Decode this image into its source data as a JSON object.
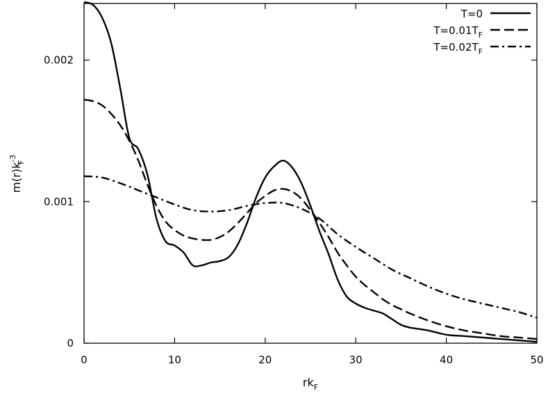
{
  "chart_data": {
    "type": "line",
    "xlabel": {
      "base": "rk",
      "sub": "F"
    },
    "ylabel": {
      "base": "m(r)k",
      "sub": "F",
      "sup": "-3"
    },
    "xlim": [
      0,
      50
    ],
    "ylim": [
      0,
      0.0024
    ],
    "xticks": [
      {
        "value": 0,
        "label": "0"
      },
      {
        "value": 10,
        "label": "10"
      },
      {
        "value": 20,
        "label": "20"
      },
      {
        "value": 30,
        "label": "30"
      },
      {
        "value": 40,
        "label": "40"
      },
      {
        "value": 50,
        "label": "50"
      }
    ],
    "yticks": [
      {
        "value": 0,
        "label": "0"
      },
      {
        "value": 0.001,
        "label": "0.001"
      },
      {
        "value": 0.002,
        "label": "0.002"
      }
    ],
    "grid": false,
    "legend_position": "top-right",
    "series": [
      {
        "name": "T=0",
        "name_base": "T=0",
        "name_sub": "",
        "dash": "solid",
        "points": [
          [
            0,
            0.00241
          ],
          [
            1,
            0.00239
          ],
          [
            2,
            0.0023
          ],
          [
            3,
            0.00212
          ],
          [
            4,
            0.0018
          ],
          [
            5,
            0.00145
          ],
          [
            6,
            0.00137
          ],
          [
            7,
            0.00119
          ],
          [
            8,
            0.00088
          ],
          [
            9,
            0.00072
          ],
          [
            10,
            0.00069
          ],
          [
            11,
            0.00064
          ],
          [
            12,
            0.00055
          ],
          [
            13,
            0.00055
          ],
          [
            14,
            0.00057
          ],
          [
            15,
            0.00058
          ],
          [
            16,
            0.00061
          ],
          [
            17,
            0.0007
          ],
          [
            18,
            0.00085
          ],
          [
            19,
            0.00103
          ],
          [
            20,
            0.00117
          ],
          [
            21,
            0.00125
          ],
          [
            22,
            0.00129
          ],
          [
            23,
            0.00124
          ],
          [
            24,
            0.00113
          ],
          [
            25,
            0.00097
          ],
          [
            26,
            0.00079
          ],
          [
            27,
            0.00063
          ],
          [
            28,
            0.00045
          ],
          [
            29,
            0.00033
          ],
          [
            30,
            0.00028
          ],
          [
            31,
            0.00025
          ],
          [
            32,
            0.00023
          ],
          [
            33,
            0.00021
          ],
          [
            34,
            0.00017
          ],
          [
            35,
            0.00013
          ],
          [
            36,
            0.00011
          ],
          [
            38,
            9e-05
          ],
          [
            40,
            6e-05
          ],
          [
            42,
            5e-05
          ],
          [
            44,
            4e-05
          ],
          [
            46,
            3e-05
          ],
          [
            48,
            2e-05
          ],
          [
            50,
            1e-05
          ]
        ]
      },
      {
        "name": "T=0.01T_F",
        "name_base": "T=0.01T",
        "name_sub": "F",
        "dash": "dash",
        "points": [
          [
            0,
            0.00172
          ],
          [
            1,
            0.00171
          ],
          [
            2,
            0.00168
          ],
          [
            3,
            0.00162
          ],
          [
            4,
            0.00154
          ],
          [
            5,
            0.00143
          ],
          [
            6,
            0.00129
          ],
          [
            7,
            0.00112
          ],
          [
            8,
            0.00097
          ],
          [
            9,
            0.00086
          ],
          [
            10,
            0.0008
          ],
          [
            11,
            0.00076
          ],
          [
            12,
            0.00074
          ],
          [
            13,
            0.00073
          ],
          [
            14,
            0.00073
          ],
          [
            15,
            0.00075
          ],
          [
            16,
            0.00079
          ],
          [
            17,
            0.00085
          ],
          [
            18,
            0.00092
          ],
          [
            19,
            0.00099
          ],
          [
            20,
            0.00104
          ],
          [
            21,
            0.00108
          ],
          [
            22,
            0.00109
          ],
          [
            23,
            0.00107
          ],
          [
            24,
            0.00102
          ],
          [
            25,
            0.00094
          ],
          [
            26,
            0.00085
          ],
          [
            27,
            0.00075
          ],
          [
            28,
            0.00064
          ],
          [
            29,
            0.00055
          ],
          [
            30,
            0.00047
          ],
          [
            31,
            0.00041
          ],
          [
            32,
            0.00036
          ],
          [
            33,
            0.00031
          ],
          [
            34,
            0.00027
          ],
          [
            35,
            0.00024
          ],
          [
            36,
            0.00021
          ],
          [
            38,
            0.00016
          ],
          [
            40,
            0.00012
          ],
          [
            42,
            9e-05
          ],
          [
            44,
            7e-05
          ],
          [
            46,
            5e-05
          ],
          [
            48,
            4e-05
          ],
          [
            50,
            3e-05
          ]
        ]
      },
      {
        "name": "T=0.02T_F",
        "name_base": "T=0.02T",
        "name_sub": "F",
        "dash": "dashdot",
        "points": [
          [
            0,
            0.00118
          ],
          [
            2,
            0.00117
          ],
          [
            4,
            0.00113
          ],
          [
            6,
            0.00108
          ],
          [
            8,
            0.00103
          ],
          [
            10,
            0.00098
          ],
          [
            12,
            0.00094
          ],
          [
            14,
            0.00093
          ],
          [
            16,
            0.00094
          ],
          [
            18,
            0.00097
          ],
          [
            20,
            0.00099
          ],
          [
            22,
            0.00099
          ],
          [
            24,
            0.00095
          ],
          [
            26,
            0.00088
          ],
          [
            28,
            0.00077
          ],
          [
            30,
            0.00068
          ],
          [
            32,
            0.0006
          ],
          [
            34,
            0.00052
          ],
          [
            36,
            0.00046
          ],
          [
            38,
            0.0004
          ],
          [
            40,
            0.00035
          ],
          [
            42,
            0.00031
          ],
          [
            44,
            0.00028
          ],
          [
            46,
            0.00025
          ],
          [
            48,
            0.00022
          ],
          [
            50,
            0.00018
          ]
        ]
      }
    ]
  }
}
